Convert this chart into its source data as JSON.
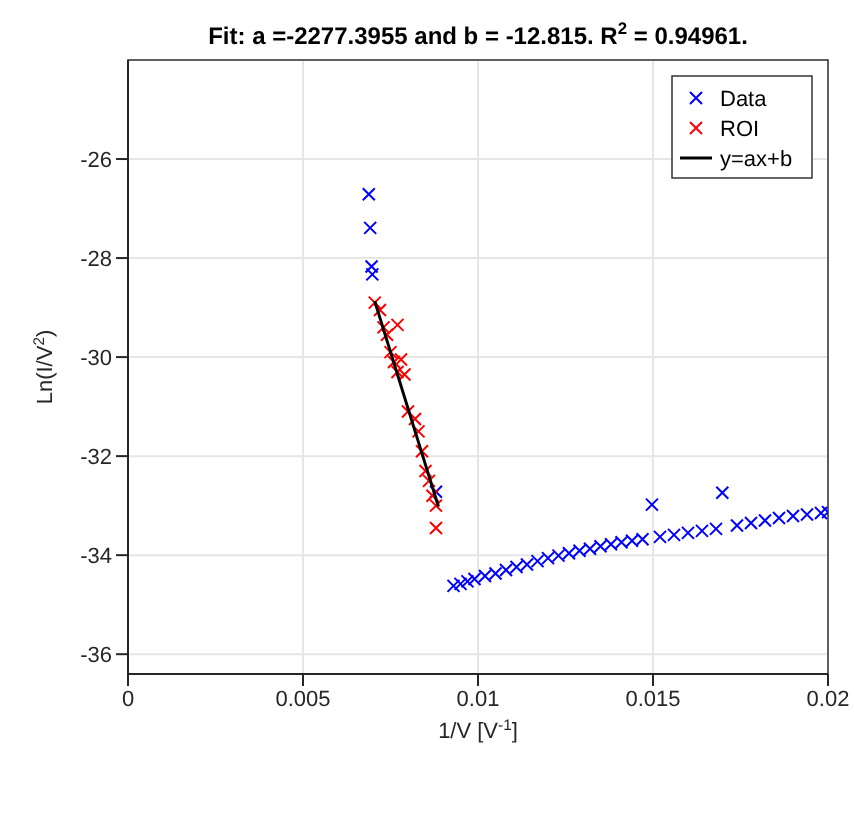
{
  "chart_data": {
    "type": "scatter",
    "title": "Fit: a =-2277.3955 and b = -12.815. R$^{2}$ = 0.94961.",
    "xlabel": "1/V [V$^{-1}$]",
    "ylabel": "Ln(I/V$^{2}$)",
    "xlim": [
      0,
      0.02
    ],
    "xticks": [
      0,
      0.005,
      0.01,
      0.015,
      0.02
    ],
    "ylim": [
      -36.4,
      -24
    ],
    "yticks": [
      -36,
      -34,
      -32,
      -30,
      -28,
      -26
    ],
    "grid": true,
    "legend": "top right",
    "series": [
      {
        "name": "Data",
        "color": "#0000ff",
        "marker": "cross",
        "x": [
          0.00688,
          0.00692,
          0.00696,
          0.00698,
          0.0088,
          0.01497,
          0.01698,
          0.0093,
          0.0095,
          0.0097,
          0.0099,
          0.0102,
          0.0105,
          0.0108,
          0.0111,
          0.0114,
          0.0117,
          0.012,
          0.0123,
          0.0126,
          0.0129,
          0.0132,
          0.0135,
          0.0138,
          0.0141,
          0.0144,
          0.0147,
          0.0152,
          0.0156,
          0.016,
          0.0164,
          0.0168,
          0.0174,
          0.0178,
          0.0182,
          0.0186,
          0.019,
          0.0194,
          0.0198,
          0.02
        ],
        "values": [
          -26.71,
          -27.39,
          -28.17,
          -28.33,
          -32.72,
          -32.98,
          -32.74,
          -34.62,
          -34.58,
          -34.53,
          -34.48,
          -34.42,
          -34.37,
          -34.3,
          -34.24,
          -34.19,
          -34.12,
          -34.06,
          -34.01,
          -33.96,
          -33.91,
          -33.87,
          -33.82,
          -33.78,
          -33.74,
          -33.71,
          -33.68,
          -33.63,
          -33.59,
          -33.55,
          -33.51,
          -33.47,
          -33.4,
          -33.35,
          -33.3,
          -33.25,
          -33.21,
          -33.18,
          -33.15,
          -33.13
        ]
      },
      {
        "name": "ROI",
        "color": "#ff0000",
        "marker": "cross",
        "x": [
          0.00705,
          0.0072,
          0.0073,
          0.0074,
          0.0077,
          0.0075,
          0.0076,
          0.0078,
          0.0079,
          0.0077,
          0.008,
          0.0082,
          0.0083,
          0.0084,
          0.0085,
          0.0086,
          0.0087,
          0.0088,
          0.0088
        ],
        "values": [
          -28.9,
          -29.05,
          -29.4,
          -29.55,
          -29.35,
          -29.9,
          -30.1,
          -30.05,
          -30.35,
          -30.3,
          -31.1,
          -31.25,
          -31.5,
          -31.9,
          -32.3,
          -32.5,
          -32.8,
          -33.0,
          -33.45
        ]
      },
      {
        "name": "y=ax+b",
        "color": "#000000",
        "type": "line",
        "marker": "none",
        "line_style": "solid",
        "x": [
          0.00705,
          0.00887
        ],
        "values": [
          -28.87,
          -33.02
        ]
      }
    ]
  }
}
